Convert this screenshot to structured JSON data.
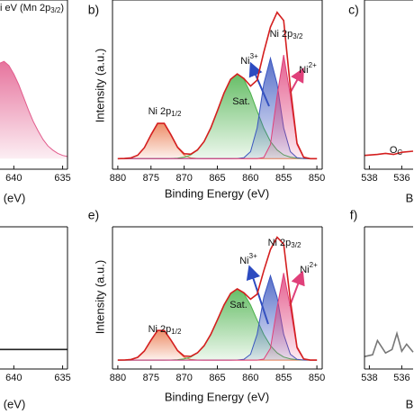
{
  "chart_data": [
    {
      "type": "line",
      "title_parts": [
        {
          "text": "i eV (Mn 2p"
        },
        {
          "text": "3/2",
          "sub": true
        },
        {
          "text": ")"
        }
      ],
      "x_label": "(eV)",
      "xlim": [
        641.6,
        634.5
      ],
      "xticks": [
        640,
        635
      ],
      "ylim": [
        -10,
        150
      ],
      "x": [
        641.5,
        641,
        640.5,
        640,
        639.5,
        639,
        638.5,
        638,
        637.5,
        637,
        636.5,
        636,
        635.5,
        635,
        634.5
      ],
      "series": [
        {
          "color": "#e25b8c",
          "fill": true,
          "values": [
            90,
            92,
            88,
            80,
            70,
            58,
            46,
            35,
            26,
            18,
            12,
            8,
            5,
            3,
            2
          ]
        }
      ]
    },
    {
      "type": "line",
      "panel": "b)",
      "x_label": "Binding Energy (eV)",
      "y_label": "Intensity (a.u.)",
      "xlim": [
        880.8,
        849.2
      ],
      "xticks": [
        880,
        875,
        870,
        865,
        860,
        855,
        850
      ],
      "ylim": [
        -10,
        150
      ],
      "x": [
        880,
        879,
        878,
        877,
        876,
        875,
        874,
        873,
        872,
        871,
        870,
        869,
        868,
        867,
        866,
        865,
        864,
        863,
        862,
        861,
        860,
        859,
        858,
        857,
        856,
        855,
        854,
        853,
        852,
        851,
        850
      ],
      "series": [
        {
          "color": "#ea7a4e",
          "fill": true,
          "values": [
            0,
            0.1,
            0.7,
            3.2,
            10.3,
            22.5,
            33.3,
            33.3,
            22.5,
            10.3,
            3.2,
            0.7,
            0.1,
            0,
            0,
            0,
            0,
            0,
            0,
            0,
            0,
            0,
            0,
            0,
            0,
            0,
            0,
            0,
            0,
            0,
            0
          ]
        },
        {
          "color": "#4cb24c",
          "fill": true,
          "values": [
            0,
            0,
            0,
            0,
            0,
            0,
            0,
            0,
            0.1,
            0.5,
            1.4,
            3.5,
            8.1,
            16.2,
            28.8,
            45.1,
            62,
            75,
            80,
            75,
            62,
            45.1,
            28.8,
            16.2,
            8.1,
            3.5,
            1.4,
            0.5,
            0.1,
            0,
            0
          ]
        },
        {
          "color": "#3a56c0",
          "fill": true,
          "values": [
            0,
            0,
            0,
            0,
            0,
            0,
            0,
            0,
            0,
            0,
            0,
            0,
            0,
            0,
            0,
            0,
            0,
            0,
            0.1,
            0.8,
            6.6,
            29.1,
            70.7,
            95,
            70.7,
            29.1,
            6.6,
            0.8,
            0.1,
            0,
            0
          ]
        },
        {
          "color": "#e0407a",
          "fill": true,
          "values": [
            0,
            0,
            0,
            0,
            0,
            0,
            0,
            0,
            0,
            0,
            0,
            0,
            0,
            0,
            0,
            0,
            0,
            0,
            0,
            0,
            0,
            0,
            1.1,
            13.3,
            59.5,
            98,
            59.5,
            13.3,
            1.1,
            0,
            0
          ]
        },
        {
          "color": "#d41f1f",
          "fill": false,
          "values": [
            0,
            0.1,
            0.7,
            3.2,
            10.3,
            22.5,
            33.3,
            33.3,
            22.6,
            10.8,
            4.6,
            4.2,
            8.2,
            16.2,
            28.8,
            45.1,
            62,
            75,
            80.1,
            75.8,
            68.6,
            74.2,
            100.6,
            124.5,
            138.3,
            130.6,
            67.5,
            14.6,
            1.3,
            0,
            0
          ]
        }
      ],
      "annotations": [
        {
          "parts": [
            {
              "text": "Ni 2p"
            },
            {
              "text": "1/2",
              "sub": true
            }
          ]
        },
        {
          "parts": [
            {
              "text": "Sat."
            }
          ]
        },
        {
          "parts": [
            {
              "text": "Ni"
            },
            {
              "text": "3+",
              "sup": true
            }
          ]
        },
        {
          "parts": [
            {
              "text": "Ni 2p"
            },
            {
              "text": "3/2",
              "sub": true
            }
          ]
        },
        {
          "parts": [
            {
              "text": "Ni"
            },
            {
              "text": "2+",
              "sup": true
            }
          ]
        }
      ]
    },
    {
      "type": "line",
      "panel": "c)",
      "x_label": "B",
      "xlim": [
        538.3,
        535.3
      ],
      "xticks": [
        538,
        536
      ],
      "ylim": [
        -10,
        150
      ],
      "x": [
        538.3,
        537.5,
        537,
        536.5,
        536,
        535.3
      ],
      "series": [
        {
          "color": "#d41f1f",
          "fill": false,
          "values": [
            3,
            4,
            5,
            4,
            6,
            7
          ]
        }
      ],
      "annotations": [
        {
          "parts": [
            {
              "text": "O"
            },
            {
              "text": "C",
              "sub": true
            }
          ]
        }
      ]
    },
    {
      "type": "line",
      "x_label": "(eV)",
      "xlim": [
        641.6,
        634.5
      ],
      "xticks": [
        640,
        635
      ],
      "ylim": [
        -10,
        150
      ],
      "x": [
        641.5,
        634.5
      ],
      "series": [
        {
          "color": "#222222",
          "fill": false,
          "values": [
            12,
            12
          ]
        }
      ]
    },
    {
      "type": "line",
      "panel": "e)",
      "x_label": "Binding Energy (eV)",
      "y_label": "Intensity (a.u.)",
      "xlim": [
        880.8,
        849.2
      ],
      "xticks": [
        880,
        875,
        870,
        865,
        860,
        855,
        850
      ],
      "ylim": [
        -10,
        150
      ],
      "x": [
        880,
        879,
        878,
        877,
        876,
        875,
        874,
        873,
        872,
        871,
        870,
        869,
        868,
        867,
        866,
        865,
        864,
        863,
        862,
        861,
        860,
        859,
        858,
        857,
        856,
        855,
        854,
        853,
        852,
        851,
        850
      ],
      "series": [
        {
          "color": "#ea7a4e",
          "fill": true,
          "values": [
            0,
            0.1,
            0.7,
            3.2,
            10.3,
            22.5,
            33.3,
            33.3,
            22.5,
            10.3,
            3.2,
            0.7,
            0.1,
            0,
            0,
            0,
            0,
            0,
            0,
            0,
            0,
            0,
            0,
            0,
            0,
            0,
            0,
            0,
            0,
            0,
            0
          ]
        },
        {
          "color": "#4cb24c",
          "fill": true,
          "values": [
            0,
            0,
            0,
            0,
            0,
            0,
            0,
            0,
            0.1,
            0.5,
            1.4,
            3.5,
            8.1,
            16.2,
            28.8,
            45.1,
            62,
            75,
            80,
            75,
            62,
            45.1,
            28.8,
            16.2,
            8.1,
            3.5,
            1.4,
            0.5,
            0.1,
            0,
            0
          ]
        },
        {
          "color": "#3a56c0",
          "fill": true,
          "values": [
            0,
            0,
            0,
            0,
            0,
            0,
            0,
            0,
            0,
            0,
            0,
            0,
            0,
            0,
            0,
            0,
            0,
            0,
            0.1,
            0.8,
            6.6,
            29.1,
            70.7,
            95,
            70.7,
            29.1,
            6.6,
            0.8,
            0.1,
            0,
            0
          ]
        },
        {
          "color": "#e0407a",
          "fill": true,
          "values": [
            0,
            0,
            0,
            0,
            0,
            0,
            0,
            0,
            0,
            0,
            0,
            0,
            0,
            0,
            0,
            0,
            0,
            0,
            0,
            0,
            0,
            0,
            1.1,
            13.3,
            59.5,
            98,
            59.5,
            13.3,
            1.1,
            0,
            0
          ]
        },
        {
          "color": "#d41f1f",
          "fill": false,
          "values": [
            0,
            0.1,
            0.7,
            3.2,
            10.3,
            22.5,
            33.3,
            33.3,
            22.6,
            10.8,
            4.6,
            4.2,
            8.2,
            16.2,
            28.8,
            45.1,
            62,
            75,
            80.1,
            75.8,
            68.6,
            74.2,
            100.6,
            124.5,
            138.3,
            130.6,
            67.5,
            14.6,
            1.3,
            0,
            0
          ]
        }
      ],
      "annotations": [
        {
          "parts": [
            {
              "text": "Ni 2p"
            },
            {
              "text": "1/2",
              "sub": true
            }
          ]
        },
        {
          "parts": [
            {
              "text": "Sat."
            }
          ]
        },
        {
          "parts": [
            {
              "text": "Ni"
            },
            {
              "text": "3+",
              "sup": true
            }
          ]
        },
        {
          "parts": [
            {
              "text": "Ni 2p"
            },
            {
              "text": "3/2",
              "sub": true
            }
          ]
        },
        {
          "parts": [
            {
              "text": "Ni"
            },
            {
              "text": "2+",
              "sup": true
            }
          ]
        }
      ]
    },
    {
      "type": "line",
      "panel": "f)",
      "x_label": "B",
      "xlim": [
        538.3,
        535.3
      ],
      "xticks": [
        538,
        536
      ],
      "ylim": [
        -10,
        150
      ],
      "x": [
        538.3,
        537.8,
        537.5,
        537,
        536.6,
        536.3,
        536,
        535.7,
        535.3
      ],
      "series": [
        {
          "color": "#777777",
          "fill": false,
          "values": [
            4,
            6,
            22,
            8,
            12,
            30,
            10,
            18,
            9
          ]
        }
      ]
    }
  ]
}
